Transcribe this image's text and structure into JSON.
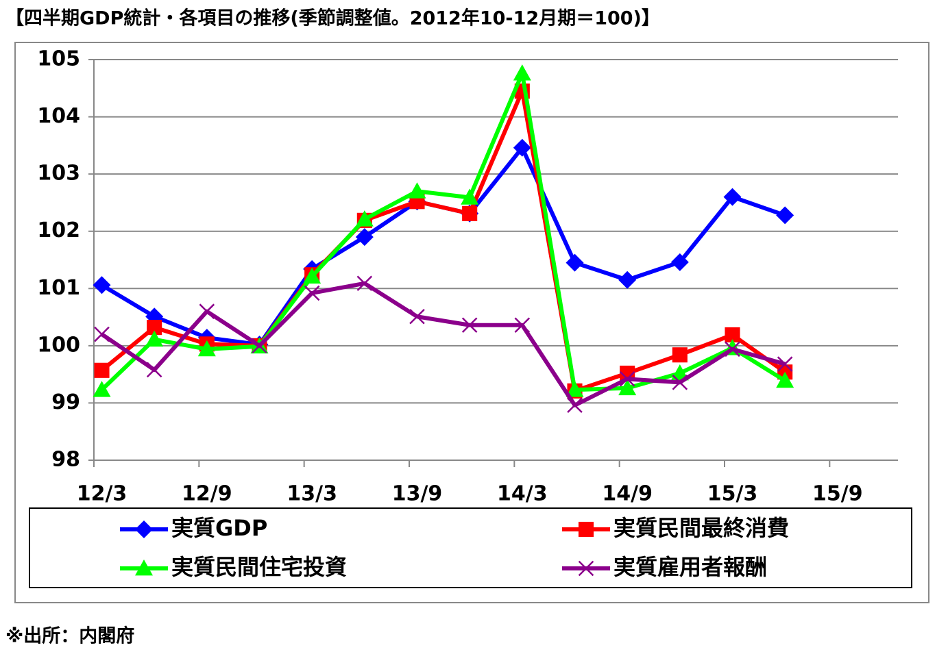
{
  "chart_data": {
    "type": "line",
    "title": "【四半期GDP統計・各項目の推移(季節調整値。2012年10-12月期＝100)】",
    "source": "※出所：内閣府",
    "categories": [
      "12/3",
      null,
      "12/9",
      null,
      "13/3",
      null,
      "13/9",
      null,
      "14/3",
      null,
      "14/9",
      null,
      "15/3",
      null,
      "15/9",
      null
    ],
    "ylim": [
      98,
      105
    ],
    "yticks": [
      98,
      99,
      100,
      101,
      102,
      103,
      104,
      105
    ],
    "grid": true,
    "series": [
      {
        "name": "実質GDP",
        "color": "#0000ff",
        "marker": "diamond",
        "values": [
          101.06,
          100.51,
          100.14,
          100.02,
          101.34,
          101.9,
          102.52,
          102.31,
          103.46,
          101.45,
          101.15,
          101.46,
          102.6,
          102.28,
          null,
          null
        ]
      },
      {
        "name": "実質民間最終消費",
        "color": "#ff0000",
        "marker": "square",
        "values": [
          99.57,
          100.32,
          100.03,
          100,
          101.24,
          102.19,
          102.52,
          102.31,
          104.45,
          99.21,
          99.52,
          99.84,
          100.19,
          99.54,
          null,
          null
        ]
      },
      {
        "name": "実質民間住宅投資",
        "color": "#00ff00",
        "marker": "triangle",
        "values": [
          99.23,
          100.11,
          99.94,
          99.99,
          101.21,
          102.21,
          102.7,
          102.59,
          104.76,
          99.23,
          99.26,
          99.52,
          99.96,
          99.39,
          null,
          null
        ]
      },
      {
        "name": "実質雇用者報酬",
        "color": "#8b008b",
        "marker": "x",
        "values": [
          100.2,
          99.58,
          100.6,
          100,
          100.92,
          101.09,
          100.51,
          100.36,
          100.36,
          98.96,
          99.42,
          99.36,
          99.94,
          99.68,
          null,
          null
        ]
      }
    ]
  }
}
